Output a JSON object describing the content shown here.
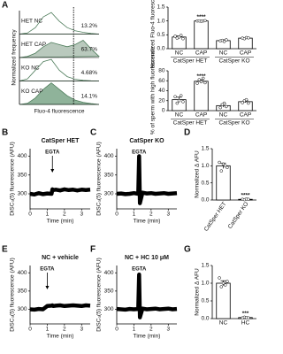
{
  "chart_data": [
    {
      "type": "ridgeline",
      "label": "A",
      "xlabel": "Fluo-4 fluorescence",
      "ylabel": "Normalized frequency",
      "xlim": [
        0,
        10
      ],
      "x": [
        0,
        1,
        2,
        3,
        4,
        5,
        6,
        7,
        8,
        9,
        10
      ],
      "gate": 6.8,
      "series": [
        {
          "name": "HET NC",
          "color": "#ffffff",
          "value": 13.2,
          "value_label": "13.2%",
          "values": [
            0,
            0.05,
            0.3,
            0.8,
            1.0,
            0.6,
            0.3,
            0.15,
            0.08,
            0.03,
            0
          ]
        },
        {
          "name": "HET CAP",
          "color": "#b9c9bd",
          "value": 63.7,
          "value_label": "63.7%",
          "values": [
            0,
            0.05,
            0.2,
            0.5,
            0.7,
            0.6,
            0.5,
            0.6,
            0.8,
            0.4,
            0.05
          ]
        },
        {
          "name": "KO NC",
          "color": "#ffffff",
          "value": 4.68,
          "value_label": "4.68%",
          "values": [
            0,
            0.1,
            0.5,
            0.9,
            1.0,
            0.5,
            0.2,
            0.08,
            0.03,
            0.01,
            0
          ]
        },
        {
          "name": "KO CAP",
          "color": "#8fb39a",
          "value": 14.1,
          "value_label": "14.1%",
          "values": [
            0,
            0.05,
            0.3,
            0.7,
            1.0,
            0.7,
            0.4,
            0.2,
            0.1,
            0.04,
            0
          ]
        }
      ]
    },
    {
      "type": "bar",
      "ylabel": "Normalized Fluo-4 fluorescence",
      "categories": [
        "NC",
        "CAP",
        "NC",
        "CAP"
      ],
      "groups": [
        "CatSper HET",
        "CatSper KO"
      ],
      "values": [
        0.42,
        1.0,
        0.29,
        0.38
      ],
      "errors": [
        0.04,
        0.01,
        0.03,
        0.02
      ],
      "value_annotations": [
        null,
        "****",
        null,
        null
      ],
      "points": [
        [
          0.45,
          0.38,
          0.42,
          0.48,
          0.36
        ],
        [
          1.0,
          1.0,
          0.99,
          1.0,
          1.01
        ],
        [
          0.28,
          0.3,
          0.26,
          0.32
        ],
        [
          0.38,
          0.36,
          0.4,
          0.39
        ]
      ],
      "color": "#ffffff",
      "ylim": [
        0,
        1.5
      ],
      "yticks": [
        {
          "value": 0,
          "label": "0.0"
        },
        {
          "value": 0.5,
          "label": "0.5"
        },
        {
          "value": 1,
          "label": "1.0"
        },
        {
          "value": 1.5,
          "label": "1.5"
        }
      ]
    },
    {
      "type": "bar",
      "ylabel": "% of sperm with high fluorescence",
      "categories": [
        "NC",
        "CAP",
        "NC",
        "CAP"
      ],
      "groups": [
        "CatSper HET",
        "CatSper KO"
      ],
      "values": [
        22,
        59,
        10,
        18
      ],
      "errors": [
        5,
        3,
        3,
        2
      ],
      "value_annotations": [
        null,
        "****",
        null,
        null
      ],
      "points": [
        [
          28,
          15,
          20,
          30,
          18
        ],
        [
          55,
          62,
          58,
          65,
          56
        ],
        [
          6,
          12,
          15,
          8
        ],
        [
          16,
          20,
          22,
          15
        ]
      ],
      "color": "#ffffff",
      "ylim": [
        0,
        80
      ],
      "yticks": [
        0,
        20,
        40,
        60,
        80
      ]
    },
    {
      "type": "line",
      "label": "B",
      "title": "CatSper HET",
      "xlabel": "Time (min)",
      "ylabel": "DiSC₃(5) fluorescence (AFU)",
      "annotations": [
        {
          "text": "EGTA",
          "x": 1.3
        }
      ],
      "x": [
        0,
        0.25,
        0.5,
        0.75,
        1,
        1.25,
        1.3,
        1.35,
        1.5,
        1.75,
        2,
        2.25,
        2.5,
        2.75,
        3,
        3.25,
        3.5
      ],
      "values": [
        300,
        298,
        302,
        299,
        301,
        300,
        312,
        310,
        311,
        309,
        312,
        310,
        311,
        309,
        311,
        310,
        311
      ],
      "xlim": [
        0,
        3.5
      ],
      "xticks": [
        0,
        1,
        2,
        3
      ],
      "ylim": [
        260,
        420
      ],
      "yticks": [
        300,
        350,
        400
      ]
    },
    {
      "type": "line",
      "label": "C",
      "title": "CatSper KO",
      "xlabel": "Time (min)",
      "ylabel": "DiSC₃(5) fluorescence (AFU)",
      "annotations": [
        {
          "text": "EGTA",
          "x": 1.3
        }
      ],
      "x": [
        0,
        0.25,
        0.5,
        0.75,
        1,
        1.25,
        1.3,
        1.35,
        1.5,
        1.75,
        2,
        2.25,
        2.5,
        2.75,
        3,
        3.25,
        3.5
      ],
      "values": [
        300,
        301,
        299,
        300,
        302,
        300,
        400,
        275,
        303,
        301,
        302,
        300,
        301,
        302,
        300,
        301,
        302
      ],
      "xlim": [
        0,
        3.5
      ],
      "xticks": [
        0,
        1,
        2,
        3
      ],
      "ylim": [
        260,
        420
      ],
      "yticks": [
        300,
        350,
        400
      ]
    },
    {
      "type": "bar",
      "label": "D",
      "ylabel": "Normalized Δ AFU",
      "categories": [
        "CatSper HET",
        "CatSper KO"
      ],
      "values": [
        1.0,
        0.02
      ],
      "errors": [
        0.08,
        0.01
      ],
      "value_annotations": [
        null,
        "****"
      ],
      "points": [
        [
          1.1,
          0.85,
          1.05,
          1.0,
          0.95
        ],
        [
          0.02,
          0.01,
          0.03,
          0.02
        ]
      ],
      "color": "#ffffff",
      "ylim": [
        0,
        1.5
      ],
      "yticks": [
        {
          "value": 0,
          "label": "0.0"
        },
        {
          "value": 0.5,
          "label": "0.5"
        },
        {
          "value": 1,
          "label": "1.0"
        },
        {
          "value": 1.5,
          "label": "1.5"
        }
      ]
    },
    {
      "type": "line",
      "label": "E",
      "title": "NC + vehicle",
      "xlabel": "Time (min)",
      "ylabel": "DiSC₃(5) fluorescence (AFU)",
      "annotations": [
        {
          "text": "EGTA",
          "x": 1.0
        }
      ],
      "x": [
        0,
        0.25,
        0.5,
        0.75,
        1,
        1.25,
        1.3,
        1.35,
        1.5,
        1.75,
        2,
        2.25,
        2.5,
        2.75,
        3,
        3.25,
        3.5
      ],
      "values": [
        300,
        299,
        301,
        300,
        309,
        310,
        311,
        309,
        310,
        311,
        309,
        310,
        311,
        310,
        309,
        311,
        310
      ],
      "xlim": [
        0,
        3.5
      ],
      "xticks": [
        0,
        1,
        2,
        3
      ],
      "ylim": [
        260,
        420
      ],
      "yticks": [
        300,
        350,
        400
      ]
    },
    {
      "type": "line",
      "label": "F",
      "title": "NC + HC 10 μM",
      "xlabel": "Time (min)",
      "ylabel": "DiSC₃(5) fluorescence (AFU)",
      "annotations": [
        {
          "text": "EGTA",
          "x": 1.3
        }
      ],
      "x": [
        0,
        0.25,
        0.5,
        0.75,
        1,
        1.25,
        1.3,
        1.35,
        1.5,
        1.75,
        2,
        2.25,
        2.5,
        2.75,
        3,
        3.25,
        3.5
      ],
      "values": [
        301,
        300,
        299,
        301,
        300,
        301,
        395,
        278,
        302,
        300,
        301,
        302,
        300,
        301,
        302,
        300,
        301
      ],
      "xlim": [
        0,
        3.5
      ],
      "xticks": [
        0,
        1,
        2,
        3
      ],
      "ylim": [
        260,
        420
      ],
      "yticks": [
        300,
        350,
        400
      ]
    },
    {
      "type": "bar",
      "label": "G",
      "ylabel": "Normalized Δ AFU",
      "categories": [
        "NC",
        "HC"
      ],
      "values": [
        1.0,
        0.03
      ],
      "errors": [
        0.07,
        0.01
      ],
      "value_annotations": [
        null,
        "***"
      ],
      "points": [
        [
          1.15,
          0.9,
          1.0,
          0.95,
          1.05
        ],
        [
          0.02,
          0.04,
          0.03,
          0.02
        ]
      ],
      "color": "#ffffff",
      "ylim": [
        0,
        1.5
      ],
      "yticks": [
        {
          "value": 0,
          "label": "0.0"
        },
        {
          "value": 0.5,
          "label": "0.5"
        },
        {
          "value": 1,
          "label": "1.0"
        },
        {
          "value": 1.5,
          "label": "1.5"
        }
      ]
    }
  ]
}
